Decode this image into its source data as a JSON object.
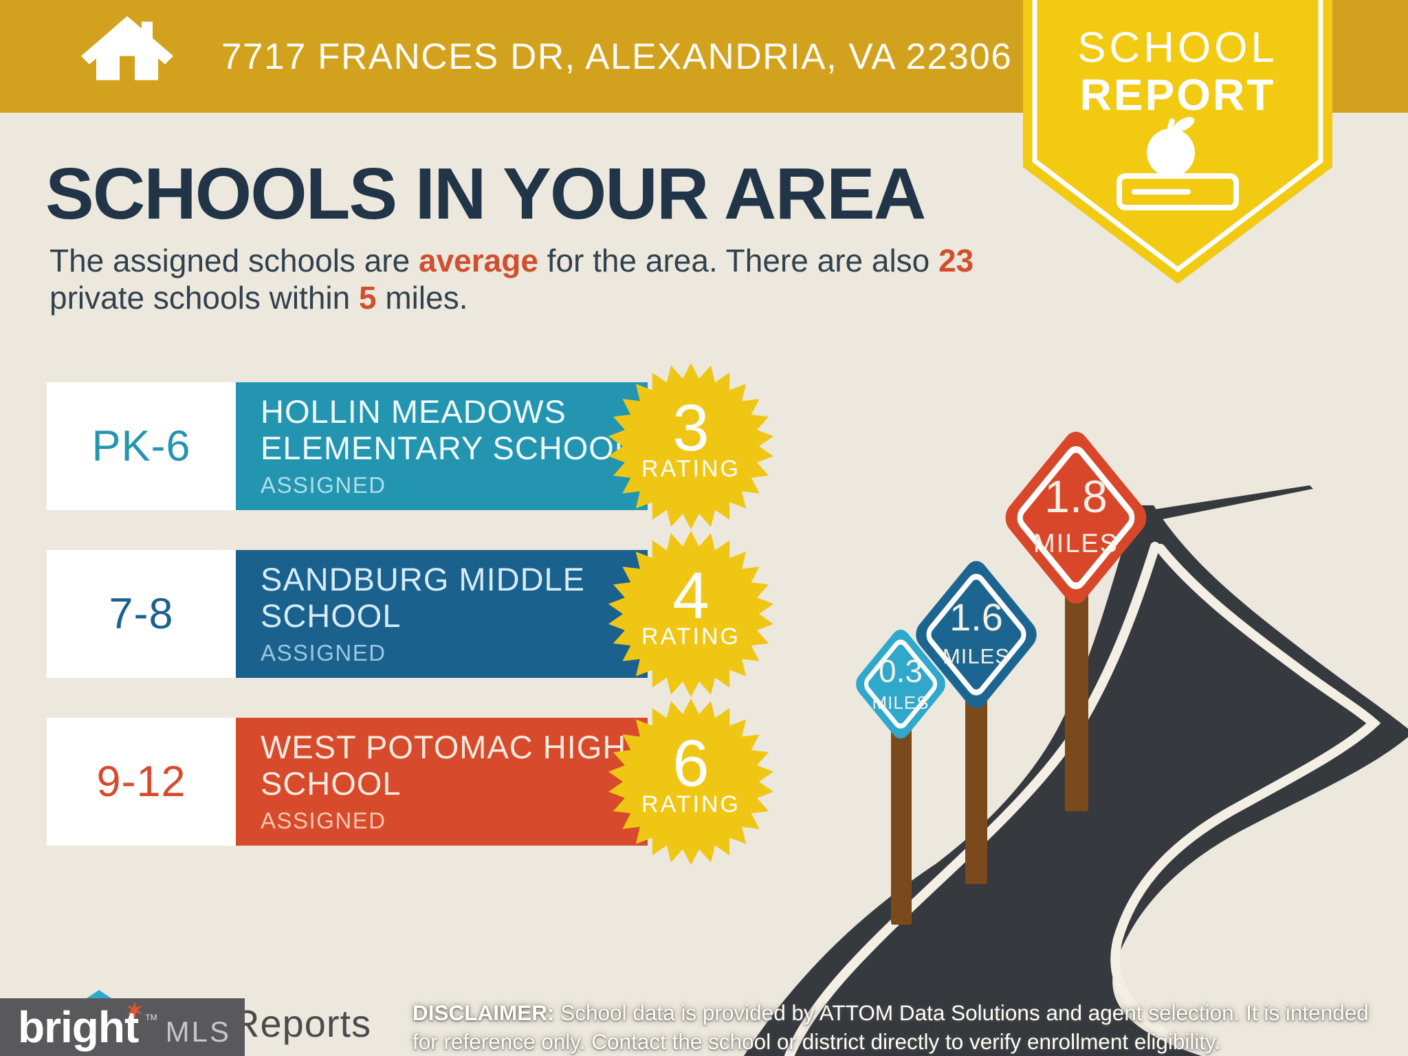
{
  "header": {
    "address": "7717 FRANCES DR, ALEXANDRIA, VA 22306"
  },
  "report_badge": {
    "line1": "SCHOOL",
    "line2": "REPORT"
  },
  "main": {
    "title": "SCHOOLS IN YOUR AREA",
    "intro": {
      "seg1": "The assigned schools are ",
      "hl1": "average",
      "seg2": " for the area. There are also ",
      "hl2": "23",
      "seg3": "private schools within ",
      "hl3": "5",
      "seg4": " miles."
    }
  },
  "schools": [
    {
      "grades": "PK-6",
      "name": "HOLLIN MEADOWS ELEMENTARY SCHOOL",
      "status": "ASSIGNED",
      "rating": "3",
      "rating_label": "RATING",
      "color": "#2395B0"
    },
    {
      "grades": "7-8",
      "name": "SANDBURG MIDDLE SCHOOL",
      "status": "ASSIGNED",
      "rating": "4",
      "rating_label": "RATING",
      "color": "#1B618D"
    },
    {
      "grades": "9-12",
      "name": "WEST POTOMAC HIGH SCHOOL",
      "status": "ASSIGNED",
      "rating": "6",
      "rating_label": "RATING",
      "color": "#D74A2B"
    }
  ],
  "distance_signs": [
    {
      "value": "0.3",
      "unit": "MILES",
      "color": "#2FA8CC"
    },
    {
      "value": "1.6",
      "unit": "MILES",
      "color": "#1C6590"
    },
    {
      "value": "1.8",
      "unit": "MILES",
      "color": "#D9472B"
    }
  ],
  "disclaimer": {
    "label": "DISCLAIMER:",
    "line1": " School data is provided by ATTOM Data Solutions and agent selection. It is intended",
    "line2": "for reference only. Contact the school or district directly to verify enrollment eligibility."
  },
  "footer": {
    "brand": "bright",
    "brand_tm": "TM",
    "brand_suffix": "MLS",
    "partial_text": "Reports"
  },
  "colors": {
    "band_gold": "#D2A21E",
    "badge_yellow": "#F2CA12",
    "starburst_yellow": "#F0C614",
    "background": "#ECE8DD",
    "headline_navy": "#223447",
    "accent_red": "#D14E2E",
    "road_charcoal": "#36393E",
    "post_brown": "#7B4A1C",
    "sign_light_blue": "#2FA8CC",
    "sign_blue": "#1C6590",
    "sign_red": "#D9472B"
  }
}
